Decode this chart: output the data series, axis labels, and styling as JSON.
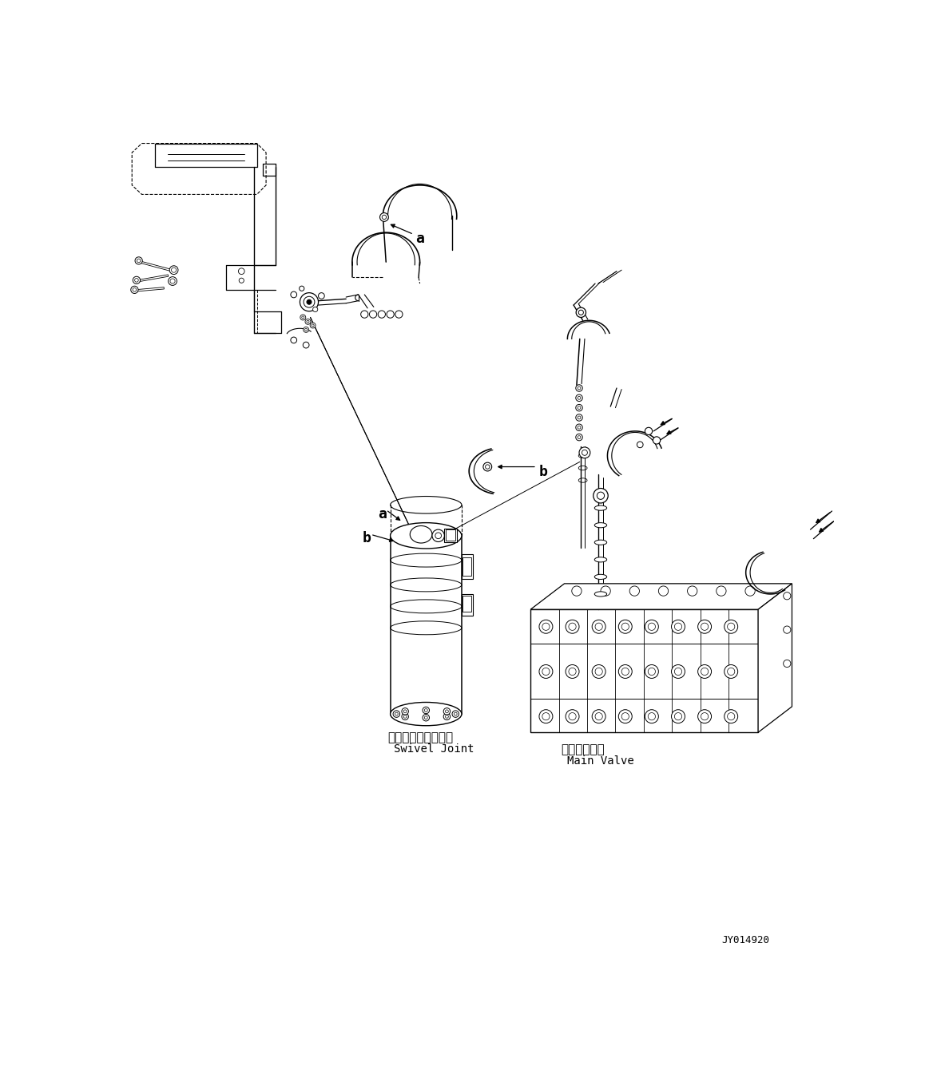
{
  "background_color": "#ffffff",
  "line_color": "#000000",
  "fig_width": 11.63,
  "fig_height": 13.55,
  "dpi": 100,
  "label_swivel_jp": "スイベルジョイント",
  "label_swivel_en": "Swivel Joint",
  "label_main_jp": "メインバルブ",
  "label_main_en": "Main Valve",
  "label_code": "JY014920",
  "label_a1": "a",
  "label_b1": "b",
  "label_a2": "a",
  "label_b2": "b"
}
